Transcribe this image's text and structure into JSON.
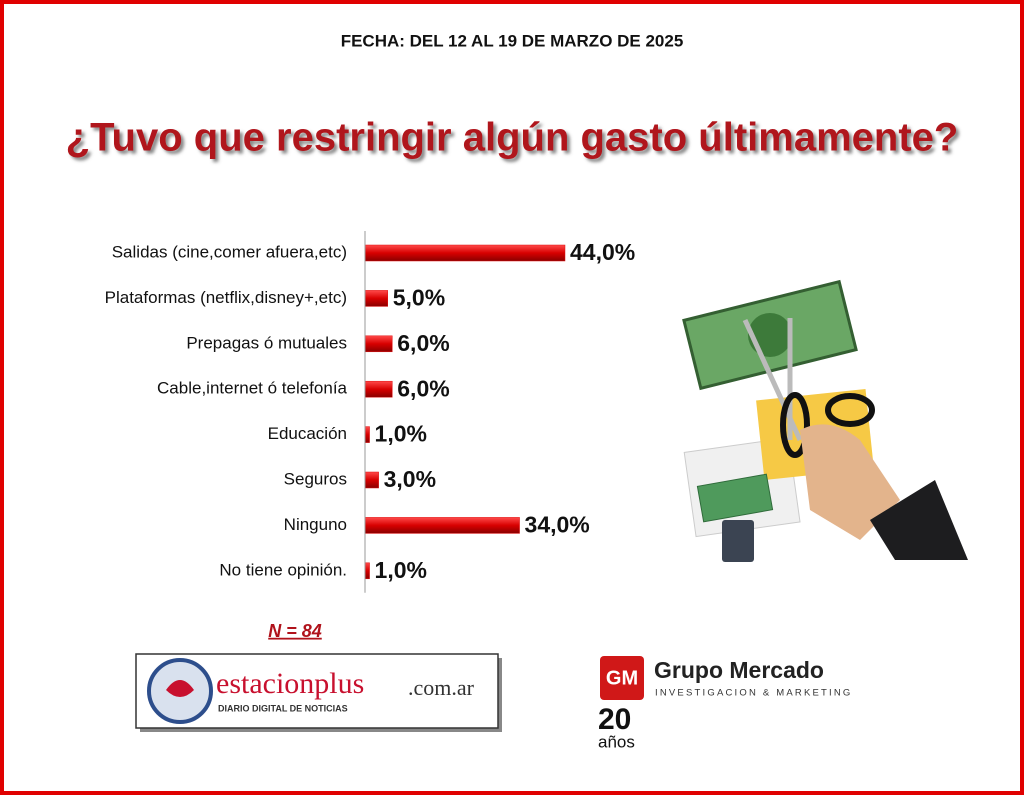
{
  "header": {
    "date": "FECHA: DEL 12 AL 19 DE MARZO DE 2025"
  },
  "chart_data": {
    "type": "bar",
    "orientation": "horizontal",
    "title": "¿Tuvo que restringir algún gasto últimamente?",
    "categories": [
      "Salidas (cine,comer afuera,etc)",
      "Plataformas (netflix,disney+,etc)",
      "Prepagas ó mutuales",
      "Cable,internet ó telefonía",
      "Educación",
      "Seguros",
      "Ninguno",
      "No tiene opinión."
    ],
    "values": [
      44,
      5,
      6,
      6,
      1,
      3,
      34,
      1
    ],
    "value_labels": [
      "44,0%",
      "5,0%",
      "6,0%",
      "6,0%",
      "1,0%",
      "3,0%",
      "34,0%",
      "1,0%"
    ],
    "color": "#e01010",
    "footnote": "N = 84"
  },
  "logos": {
    "estacionplus": {
      "name": "estacionplus",
      "domain": ".com.ar",
      "tagline": "DIARIO DIGITAL DE NOTICIAS"
    },
    "grupo_mercado": {
      "badge": "GM",
      "name": "Grupo Mercado",
      "tagline": "INVESTIGACION & MARKETING",
      "anniversary": "20",
      "anniversary_unit": "años"
    }
  }
}
